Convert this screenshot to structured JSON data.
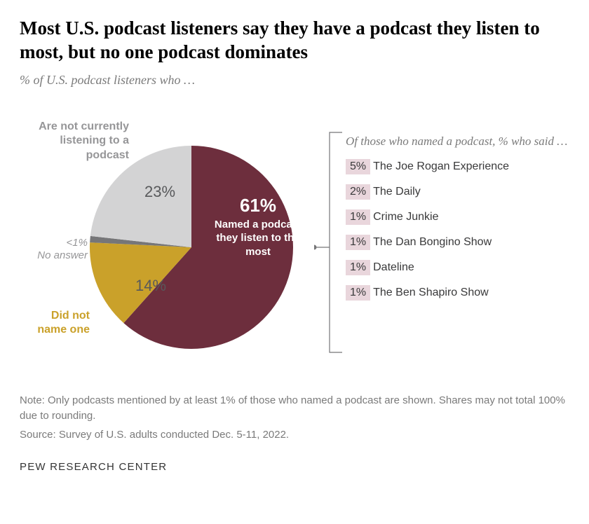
{
  "title": "Most U.S. podcast listeners say they have a podcast they listen to most, but no one podcast dominates",
  "subtitle": "% of U.S. podcast listeners who …",
  "pie": {
    "type": "pie",
    "radius": 145,
    "background_color": "#ffffff",
    "slices": [
      {
        "key": "named",
        "value": 61,
        "pct_label": "61%",
        "color": "#6d2e3d",
        "inner_label": "Named a podcast they listen to the most",
        "label_color": "#ffffff"
      },
      {
        "key": "did_not_name",
        "value": 14,
        "pct_label": "14%",
        "color": "#caa12a",
        "outer_label": "Did not name one",
        "label_color": "#caa12a",
        "pct_color": "#58595b"
      },
      {
        "key": "no_answer",
        "value": 1,
        "pct_label": "<1%",
        "color": "#767678",
        "outer_label": "No answer",
        "label_color": "#969698",
        "pct_color": "#969698"
      },
      {
        "key": "not_listening",
        "value": 23,
        "pct_label": "23%",
        "color": "#d3d3d4",
        "outer_label": "Are not currently listening to a podcast",
        "label_color": "#969698",
        "pct_color": "#58595b"
      }
    ]
  },
  "breakout": {
    "title": "Of those who named a podcast, % who said …",
    "highlight_bg": "#e9d6dc",
    "text_color": "#39393a",
    "rows": [
      {
        "pct": "5%",
        "name": "The Joe Rogan Experience"
      },
      {
        "pct": "2%",
        "name": "The Daily"
      },
      {
        "pct": "1%",
        "name": "Crime Junkie"
      },
      {
        "pct": "1%",
        "name": "The Dan Bongino Show"
      },
      {
        "pct": "1%",
        "name": "Dateline"
      },
      {
        "pct": "1%",
        "name": "The Ben Shapiro Show"
      }
    ]
  },
  "bracket": {
    "color": "#767678"
  },
  "footer": {
    "note": "Note: Only podcasts mentioned by at least 1% of those who named a podcast are shown. Shares may not total 100% due to rounding.",
    "source": "Source: Survey of U.S. adults conducted Dec. 5-11, 2022."
  },
  "org": "PEW RESEARCH CENTER"
}
